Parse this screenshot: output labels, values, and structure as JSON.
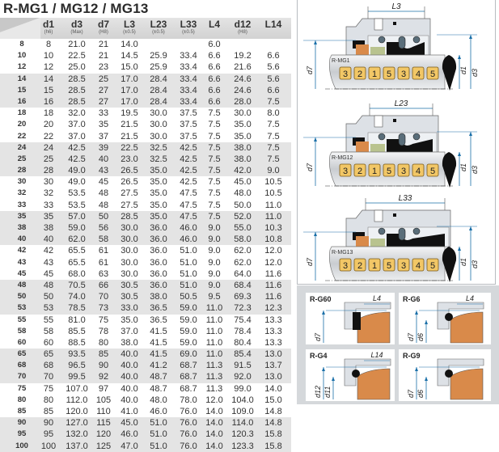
{
  "title": "R-MG1 / MG12 / MG13",
  "table": {
    "headers": [
      {
        "main": "d1",
        "sub": "(h6)"
      },
      {
        "main": "d3",
        "sub": "(Max)"
      },
      {
        "main": "d7",
        "sub": "(H8)"
      },
      {
        "main": "L3",
        "sub": "(±0.5)"
      },
      {
        "main": "L23",
        "sub": "(±0.5)"
      },
      {
        "main": "L33",
        "sub": "(±0.5)"
      },
      {
        "main": "L4",
        "sub": ""
      },
      {
        "main": "d12",
        "sub": "(H8)"
      },
      {
        "main": "L14",
        "sub": ""
      }
    ],
    "rows": [
      [
        "8",
        "8",
        "21.0",
        "21",
        "14.0",
        "",
        "",
        "6.0",
        "",
        ""
      ],
      [
        "10",
        "10",
        "22.5",
        "21",
        "14.5",
        "25.9",
        "33.4",
        "6.6",
        "19.2",
        "6.6"
      ],
      [
        "12",
        "12",
        "25.0",
        "23",
        "15.0",
        "25.9",
        "33.4",
        "6.6",
        "21.6",
        "5.6"
      ],
      [
        "14",
        "14",
        "28.5",
        "25",
        "17.0",
        "28.4",
        "33.4",
        "6.6",
        "24.6",
        "5.6"
      ],
      [
        "15",
        "15",
        "28.5",
        "27",
        "17.0",
        "28.4",
        "33.4",
        "6.6",
        "24.6",
        "6.6"
      ],
      [
        "16",
        "16",
        "28.5",
        "27",
        "17.0",
        "28.4",
        "33.4",
        "6.6",
        "28.0",
        "7.5"
      ],
      [
        "18",
        "18",
        "32.0",
        "33",
        "19.5",
        "30.0",
        "37.5",
        "7.5",
        "30.0",
        "8.0"
      ],
      [
        "20",
        "20",
        "37.0",
        "35",
        "21.5",
        "30.0",
        "37.5",
        "7.5",
        "35.0",
        "7.5"
      ],
      [
        "22",
        "22",
        "37.0",
        "37",
        "21.5",
        "30.0",
        "37.5",
        "7.5",
        "35.0",
        "7.5"
      ],
      [
        "24",
        "24",
        "42.5",
        "39",
        "22.5",
        "32.5",
        "42.5",
        "7.5",
        "38.0",
        "7.5"
      ],
      [
        "25",
        "25",
        "42.5",
        "40",
        "23.0",
        "32.5",
        "42.5",
        "7.5",
        "38.0",
        "7.5"
      ],
      [
        "28",
        "28",
        "49.0",
        "43",
        "26.5",
        "35.0",
        "42.5",
        "7.5",
        "42.0",
        "9.0"
      ],
      [
        "30",
        "30",
        "49.0",
        "45",
        "26.5",
        "35.0",
        "42.5",
        "7.5",
        "45.0",
        "10.5"
      ],
      [
        "32",
        "32",
        "53.5",
        "48",
        "27.5",
        "35.0",
        "47.5",
        "7.5",
        "48.0",
        "10.5"
      ],
      [
        "33",
        "33",
        "53.5",
        "48",
        "27.5",
        "35.0",
        "47.5",
        "7.5",
        "50.0",
        "11.0"
      ],
      [
        "35",
        "35",
        "57.0",
        "50",
        "28.5",
        "35.0",
        "47.5",
        "7.5",
        "52.0",
        "11.0"
      ],
      [
        "38",
        "38",
        "59.0",
        "56",
        "30.0",
        "36.0",
        "46.0",
        "9.0",
        "55.0",
        "10.3"
      ],
      [
        "40",
        "40",
        "62.0",
        "58",
        "30.0",
        "36.0",
        "46.0",
        "9.0",
        "58.0",
        "10.8"
      ],
      [
        "42",
        "42",
        "65.5",
        "61",
        "30.0",
        "36.0",
        "51.0",
        "9.0",
        "62.0",
        "12.0"
      ],
      [
        "43",
        "43",
        "65.5",
        "61",
        "30.0",
        "36.0",
        "51.0",
        "9.0",
        "62.0",
        "12.0"
      ],
      [
        "45",
        "45",
        "68.0",
        "63",
        "30.0",
        "36.0",
        "51.0",
        "9.0",
        "64.0",
        "11.6"
      ],
      [
        "48",
        "48",
        "70.5",
        "66",
        "30.5",
        "36.0",
        "51.0",
        "9.0",
        "68.4",
        "11.6"
      ],
      [
        "50",
        "50",
        "74.0",
        "70",
        "30.5",
        "38.0",
        "50.5",
        "9.5",
        "69.3",
        "11.6"
      ],
      [
        "53",
        "53",
        "78.5",
        "73",
        "33.0",
        "36.5",
        "59.0",
        "11.0",
        "72.3",
        "12.3"
      ],
      [
        "55",
        "55",
        "81.0",
        "75",
        "35.0",
        "36.5",
        "59.0",
        "11.0",
        "75.4",
        "13.3"
      ],
      [
        "58",
        "58",
        "85.5",
        "78",
        "37.0",
        "41.5",
        "59.0",
        "11.0",
        "78.4",
        "13.3"
      ],
      [
        "60",
        "60",
        "88.5",
        "80",
        "38.0",
        "41.5",
        "59.0",
        "11.0",
        "80.4",
        "13.3"
      ],
      [
        "65",
        "65",
        "93.5",
        "85",
        "40.0",
        "41.5",
        "69.0",
        "11.0",
        "85.4",
        "13.0"
      ],
      [
        "68",
        "68",
        "96.5",
        "90",
        "40.0",
        "41.2",
        "68.7",
        "11.3",
        "91.5",
        "13.7"
      ],
      [
        "70",
        "70",
        "99.5",
        "92",
        "40.0",
        "48.7",
        "68.7",
        "11.3",
        "92.0",
        "13.0"
      ],
      [
        "75",
        "75",
        "107.0",
        "97",
        "40.0",
        "48.7",
        "68.7",
        "11.3",
        "99.0",
        "14.0"
      ],
      [
        "80",
        "80",
        "112.0",
        "105",
        "40.0",
        "48.0",
        "78.0",
        "12.0",
        "104.0",
        "15.0"
      ],
      [
        "85",
        "85",
        "120.0",
        "110",
        "41.0",
        "46.0",
        "76.0",
        "14.0",
        "109.0",
        "14.8"
      ],
      [
        "90",
        "90",
        "127.0",
        "115",
        "45.0",
        "51.0",
        "76.0",
        "14.0",
        "114.0",
        "14.8"
      ],
      [
        "95",
        "95",
        "132.0",
        "120",
        "46.0",
        "51.0",
        "76.0",
        "14.0",
        "120.3",
        "15.8"
      ],
      [
        "100",
        "100",
        "137.0",
        "125",
        "47.0",
        "51.0",
        "76.0",
        "14.0",
        "123.3",
        "15.8"
      ]
    ]
  },
  "diagrams": [
    {
      "model": "R-MG1",
      "length_label": "L3",
      "d7": "d7",
      "d1": "d1",
      "d3": "d3",
      "parts": [
        "3",
        "2",
        "1",
        "5",
        "3",
        "4",
        "5"
      ]
    },
    {
      "model": "R-MG12",
      "length_label": "L23",
      "d7": "d7",
      "d1": "d1",
      "d3": "d3",
      "parts": [
        "3",
        "2",
        "1",
        "5",
        "3",
        "4",
        "5"
      ]
    },
    {
      "model": "R-MG13",
      "length_label": "L33",
      "d7": "d7",
      "d1": "d1",
      "d3": "d3",
      "parts": [
        "3",
        "2",
        "1",
        "5",
        "3",
        "4",
        "5"
      ]
    }
  ],
  "seats": [
    {
      "name": "R-G60",
      "dims": [
        "L4",
        "d7"
      ]
    },
    {
      "name": "R-G6",
      "dims": [
        "L4",
        "d7",
        "d6"
      ]
    },
    {
      "name": "R-G4",
      "dims": [
        "L14",
        "d12",
        "d11"
      ]
    },
    {
      "name": "R-G9",
      "dims": [
        "d7",
        "d6"
      ]
    }
  ],
  "colors": {
    "dimension": "#1a6fa8",
    "badge": "#f2c766",
    "seat_ring": "#d98a4a",
    "elastomer": "#111111",
    "housing": "#dde1e6"
  }
}
